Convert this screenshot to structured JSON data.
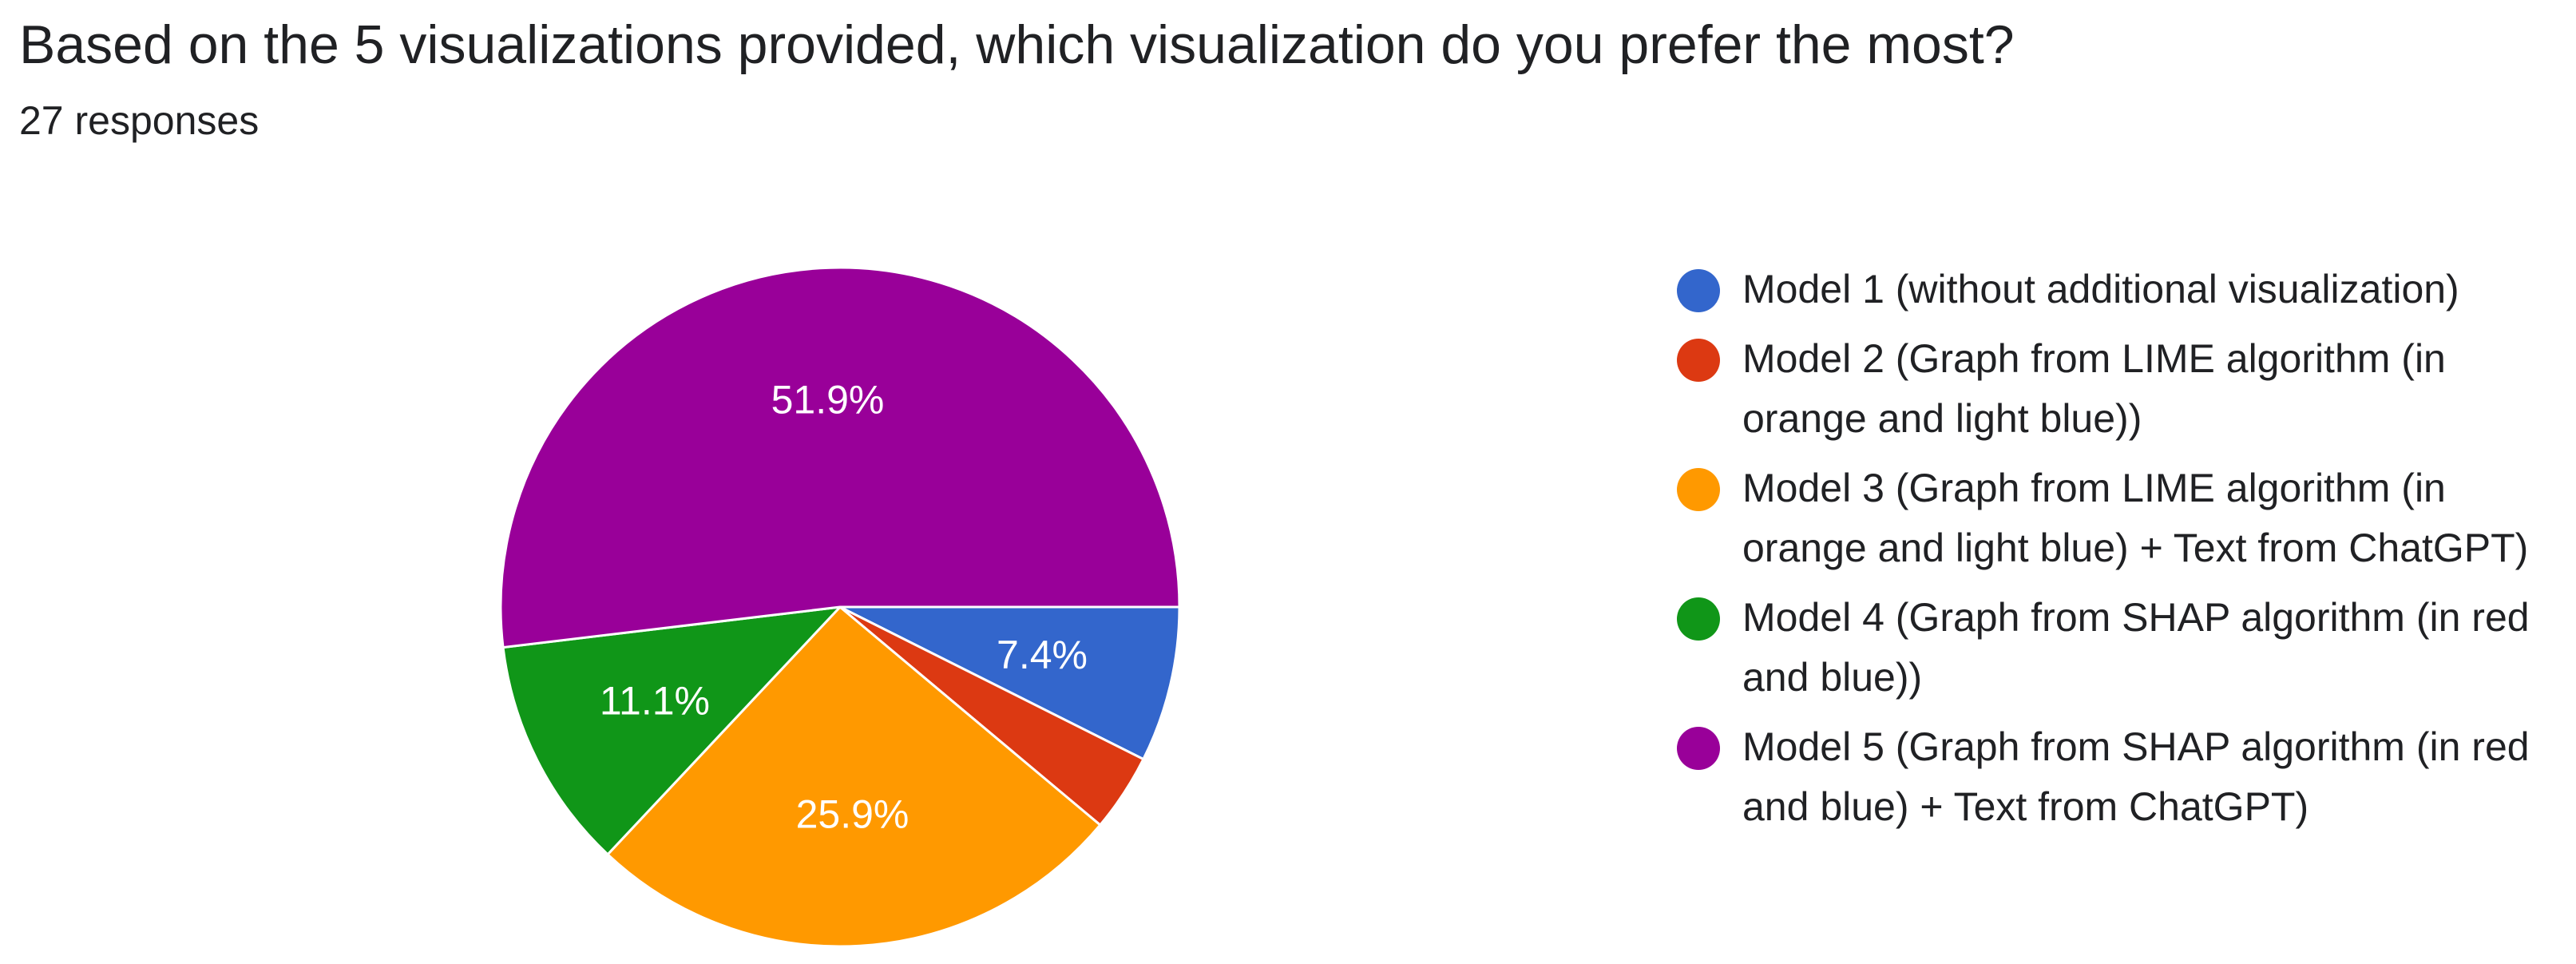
{
  "question": {
    "title": "Based on the 5 visualizations provided, which visualization do you prefer the most?",
    "responses": "27 responses"
  },
  "chart_data": {
    "type": "pie",
    "start_direction": "east",
    "direction": "clockwise",
    "legend_position": "right",
    "slices": [
      {
        "label": "Model 1 (without additional visualization)",
        "value": 7.4,
        "display": "7.4%",
        "color": "#3366cc"
      },
      {
        "label": "Model 2 (Graph from LIME algorithm (in orange and light blue))",
        "value": 3.7,
        "display": "",
        "color": "#dc3912"
      },
      {
        "label": "Model 3 (Graph from LIME algorithm (in orange and light blue) + Text from ChatGPT)",
        "value": 25.9,
        "display": "25.9%",
        "color": "#ff9900"
      },
      {
        "label": "Model 4 (Graph from SHAP algorithm (in red and blue))",
        "value": 11.1,
        "display": "11.1%",
        "color": "#109618"
      },
      {
        "label": "Model 5 (Graph from SHAP algorithm (in red and blue) + Text from ChatGPT)",
        "value": 51.9,
        "display": "51.9%",
        "color": "#990099"
      }
    ]
  }
}
